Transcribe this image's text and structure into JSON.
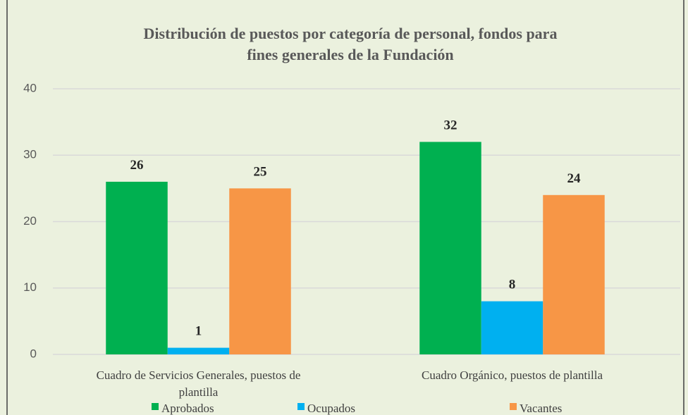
{
  "chart_data": {
    "type": "bar",
    "title": "Distribución de puestos por categoría de personal, fondos para fines generales de la Fundación",
    "categories": [
      "Cuadro de Servicios Generales, puestos de plantilla",
      "Cuadro Orgánico, puestos de plantilla"
    ],
    "series": [
      {
        "name": "Aprobados",
        "color": "#00b050",
        "values": [
          26,
          32
        ]
      },
      {
        "name": "Ocupados",
        "color": "#00b0f0",
        "values": [
          1,
          8
        ]
      },
      {
        "name": "Vacantes",
        "color": "#f79646",
        "values": [
          25,
          24
        ]
      }
    ],
    "ylim": [
      0,
      40
    ],
    "yticks": [
      0,
      10,
      20,
      30,
      40
    ],
    "grid": true,
    "legend": "bottom"
  }
}
